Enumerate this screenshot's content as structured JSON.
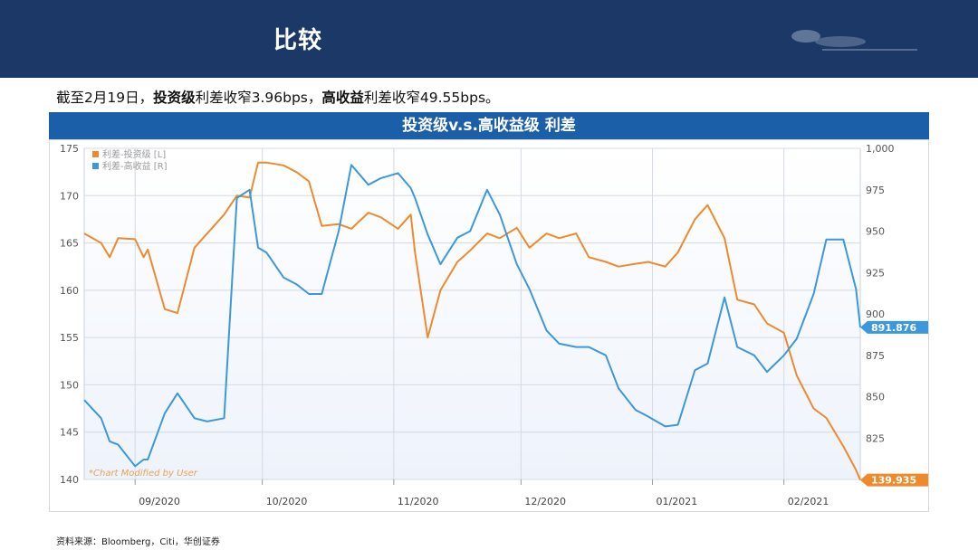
{
  "header": {
    "title": "比较"
  },
  "subtitle": {
    "p1": "截至2月19日，",
    "b1": "投资级",
    "p2": "利差收窄3.96bps，",
    "b2": "高收益",
    "p3": "利差收窄49.55bps。"
  },
  "chart_banner": "投资级v.s.高收益级 利差",
  "source": "资料来源：Bloomberg，Citi，华创证券",
  "colors": {
    "ig": "#ee8a2c",
    "hy": "#3c98dc",
    "header": "#1b3866",
    "banner": "#1b5fa8"
  },
  "chart_data": {
    "type": "line",
    "x_labels": [
      "09/2020",
      "10/2020",
      "11/2020",
      "12/2020",
      "01/2021",
      "02/2021"
    ],
    "left_axis": {
      "ylim": [
        140,
        175
      ],
      "ticks": [
        "140",
        "145",
        "150",
        "155",
        "160",
        "165",
        "170",
        "175"
      ]
    },
    "right_axis": {
      "ylim": [
        800,
        1000
      ],
      "ticks": [
        "800",
        "825",
        "850",
        "875",
        "900",
        "925",
        "950",
        "975",
        "1,000"
      ]
    },
    "watermark": "*Chart Modified by User",
    "grid": true,
    "legend_position": "top-left",
    "series": [
      {
        "name": "利差-投资级 [L]",
        "axis": "left",
        "last_label": "139.935",
        "x": [
          "2020-08-20",
          "2020-08-24",
          "2020-08-26",
          "2020-08-28",
          "2020-09-01",
          "2020-09-03",
          "2020-09-04",
          "2020-09-08",
          "2020-09-11",
          "2020-09-15",
          "2020-09-18",
          "2020-09-22",
          "2020-09-25",
          "2020-09-28",
          "2020-09-30",
          "2020-10-02",
          "2020-10-06",
          "2020-10-09",
          "2020-10-12",
          "2020-10-15",
          "2020-10-19",
          "2020-10-22",
          "2020-10-26",
          "2020-10-29",
          "2020-11-02",
          "2020-11-05",
          "2020-11-06",
          "2020-11-09",
          "2020-11-12",
          "2020-11-16",
          "2020-11-19",
          "2020-11-23",
          "2020-11-26",
          "2020-11-30",
          "2020-12-03",
          "2020-12-07",
          "2020-12-10",
          "2020-12-14",
          "2020-12-17",
          "2020-12-21",
          "2020-12-24",
          "2020-12-28",
          "2020-12-31",
          "2021-01-04",
          "2021-01-07",
          "2021-01-11",
          "2021-01-14",
          "2021-01-18",
          "2021-01-21",
          "2021-01-25",
          "2021-01-28",
          "2021-02-01",
          "2021-02-04",
          "2021-02-08",
          "2021-02-11",
          "2021-02-15",
          "2021-02-18",
          "2021-02-19"
        ],
        "values": [
          166.0,
          165.0,
          163.5,
          165.5,
          165.4,
          163.5,
          164.3,
          158.0,
          157.6,
          164.5,
          166.0,
          168.0,
          170.0,
          169.8,
          173.5,
          173.5,
          173.2,
          172.5,
          171.5,
          166.8,
          167.0,
          166.5,
          168.2,
          167.7,
          166.5,
          168.0,
          164.0,
          155.0,
          160.0,
          163.0,
          164.2,
          166.0,
          165.5,
          166.6,
          164.5,
          166.0,
          165.5,
          166.0,
          163.5,
          163.0,
          162.5,
          162.8,
          163.0,
          162.5,
          164.0,
          167.5,
          169.0,
          165.5,
          159.0,
          158.5,
          156.5,
          155.5,
          151.0,
          147.5,
          146.5,
          143.5,
          141.0,
          139.935
        ]
      },
      {
        "name": "利差-高收益 [R]",
        "axis": "right",
        "last_label": "891.876",
        "x": [
          "2020-08-20",
          "2020-08-24",
          "2020-08-26",
          "2020-08-28",
          "2020-09-01",
          "2020-09-03",
          "2020-09-04",
          "2020-09-08",
          "2020-09-11",
          "2020-09-15",
          "2020-09-18",
          "2020-09-22",
          "2020-09-25",
          "2020-09-28",
          "2020-09-30",
          "2020-10-02",
          "2020-10-06",
          "2020-10-09",
          "2020-10-12",
          "2020-10-15",
          "2020-10-19",
          "2020-10-22",
          "2020-10-26",
          "2020-10-29",
          "2020-11-02",
          "2020-11-05",
          "2020-11-06",
          "2020-11-09",
          "2020-11-12",
          "2020-11-16",
          "2020-11-19",
          "2020-11-23",
          "2020-11-26",
          "2020-11-30",
          "2020-12-03",
          "2020-12-07",
          "2020-12-10",
          "2020-12-14",
          "2020-12-17",
          "2020-12-21",
          "2020-12-24",
          "2020-12-28",
          "2020-12-31",
          "2021-01-04",
          "2021-01-07",
          "2021-01-11",
          "2021-01-14",
          "2021-01-18",
          "2021-01-21",
          "2021-01-25",
          "2021-01-28",
          "2021-02-01",
          "2021-02-04",
          "2021-02-08",
          "2021-02-11",
          "2021-02-15",
          "2021-02-18",
          "2021-02-19"
        ],
        "values": [
          848.0,
          837.0,
          823.0,
          821.0,
          808.0,
          812.0,
          812.0,
          840.0,
          852.0,
          837.0,
          835.0,
          837.0,
          970.0,
          975.0,
          940.0,
          937.0,
          922.0,
          918.0,
          912.0,
          912.0,
          950.0,
          990.0,
          978.0,
          982.0,
          985.0,
          976.0,
          970.0,
          948.0,
          930.0,
          946.0,
          950.0,
          975.0,
          960.0,
          930.0,
          915.0,
          890.0,
          882.0,
          880.0,
          880.0,
          875.0,
          855.0,
          842.0,
          838.0,
          832.0,
          833.0,
          866.0,
          870.0,
          910.0,
          880.0,
          875.0,
          865.0,
          875.0,
          885.0,
          912.0,
          945.0,
          945.0,
          915.0,
          891.876
        ]
      }
    ]
  }
}
